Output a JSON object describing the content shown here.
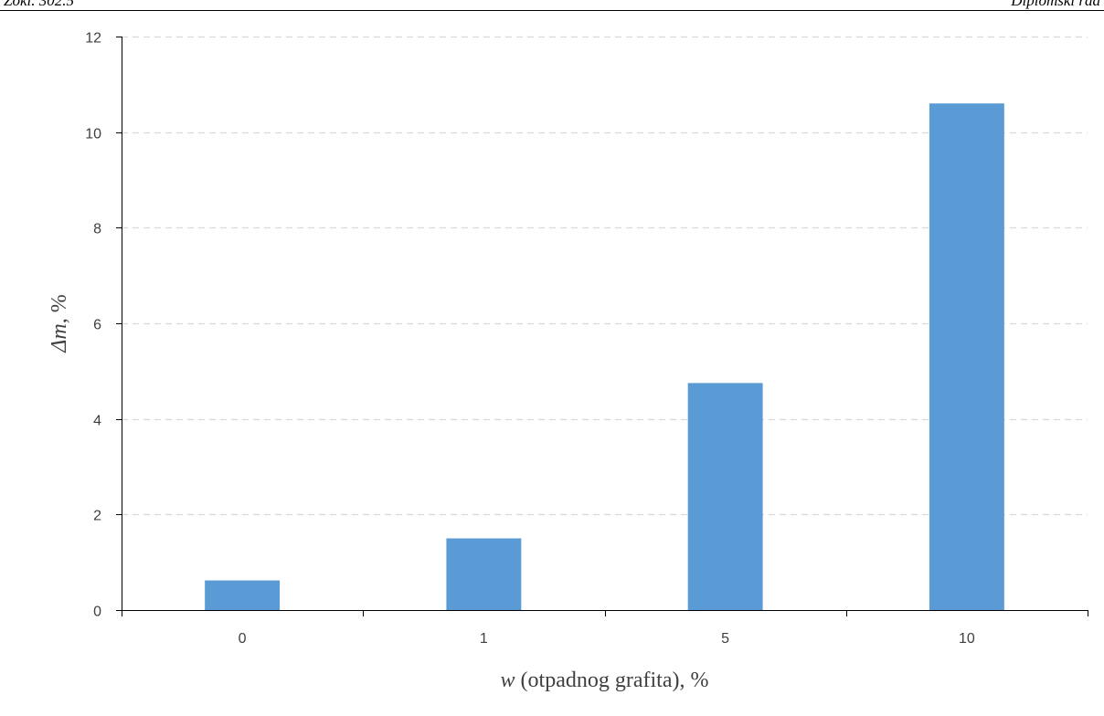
{
  "header": {
    "left_text": "Zoki. 302.5",
    "right_text": "Diplomski rad"
  },
  "chart_data": {
    "type": "bar",
    "categories": [
      "0",
      "1",
      "5",
      "10"
    ],
    "values": [
      0.62,
      1.5,
      4.75,
      10.6
    ],
    "title": "",
    "xlabel_italic": "w",
    "xlabel_rest": " (otpadnog grafita), %",
    "ylabel_italic": "Δm",
    "ylabel_rest": ", %",
    "ylim": [
      0,
      12
    ],
    "yticks": [
      0,
      2,
      4,
      6,
      8,
      10,
      12
    ],
    "grid": "horizontal-dashed",
    "legend": "none",
    "bar_color": "#5b9bd5",
    "grid_color": "#d9d9d9",
    "axis_color": "#000000"
  }
}
